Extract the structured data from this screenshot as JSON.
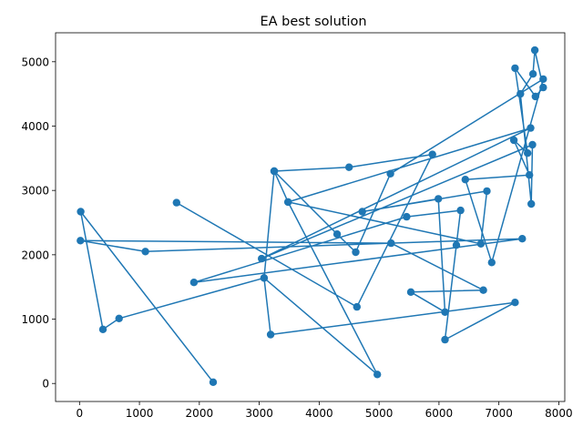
{
  "chart_data": {
    "type": "line",
    "title": "EA best solution",
    "xlabel": "",
    "ylabel": "",
    "xlim": [
      -400,
      8100
    ],
    "ylim": [
      -280,
      5450
    ],
    "xticks": [
      0,
      1000,
      2000,
      3000,
      4000,
      5000,
      6000,
      7000,
      8000
    ],
    "yticks": [
      0,
      1000,
      2000,
      3000,
      4000,
      5000
    ],
    "grid": false,
    "color": "#1f77b4",
    "marker": "circle",
    "series": [
      {
        "points": [
          [
            1620,
            2810
          ],
          [
            4630,
            1190
          ],
          [
            5890,
            3560
          ],
          [
            4500,
            3360
          ],
          [
            3250,
            3300
          ],
          [
            3080,
            1640
          ],
          [
            4970,
            140
          ],
          [
            3480,
            2820
          ],
          [
            7530,
            3970
          ],
          [
            3040,
            1940
          ],
          [
            7560,
            3710
          ],
          [
            7540,
            2790
          ],
          [
            7360,
            4500
          ],
          [
            7570,
            4810
          ],
          [
            7600,
            5180
          ],
          [
            7740,
            4600
          ],
          [
            7610,
            4460
          ],
          [
            7270,
            4900
          ],
          [
            7480,
            3580
          ],
          [
            7250,
            3780
          ],
          [
            7510,
            3240
          ],
          [
            6440,
            3170
          ],
          [
            6880,
            1880
          ],
          [
            7740,
            4730
          ],
          [
            5190,
            3260
          ],
          [
            4610,
            2040
          ],
          [
            4300,
            2320
          ],
          [
            3250,
            3300
          ],
          [
            3480,
            2820
          ],
          [
            6700,
            2170
          ],
          [
            6800,
            2990
          ],
          [
            4720,
            2670
          ],
          [
            5990,
            2870
          ],
          [
            6100,
            1110
          ],
          [
            5530,
            1420
          ],
          [
            6740,
            1450
          ],
          [
            5200,
            2180
          ],
          [
            15,
            2220
          ],
          [
            1100,
            2050
          ],
          [
            7390,
            2250
          ],
          [
            1910,
            1570
          ],
          [
            5460,
            2590
          ],
          [
            6360,
            2690
          ],
          [
            6290,
            2150
          ],
          [
            6100,
            680
          ],
          [
            7270,
            1260
          ],
          [
            3190,
            760
          ],
          [
            3080,
            1640
          ],
          [
            660,
            1010
          ],
          [
            390,
            840
          ],
          [
            20,
            2670
          ],
          [
            2230,
            20
          ]
        ]
      }
    ]
  }
}
